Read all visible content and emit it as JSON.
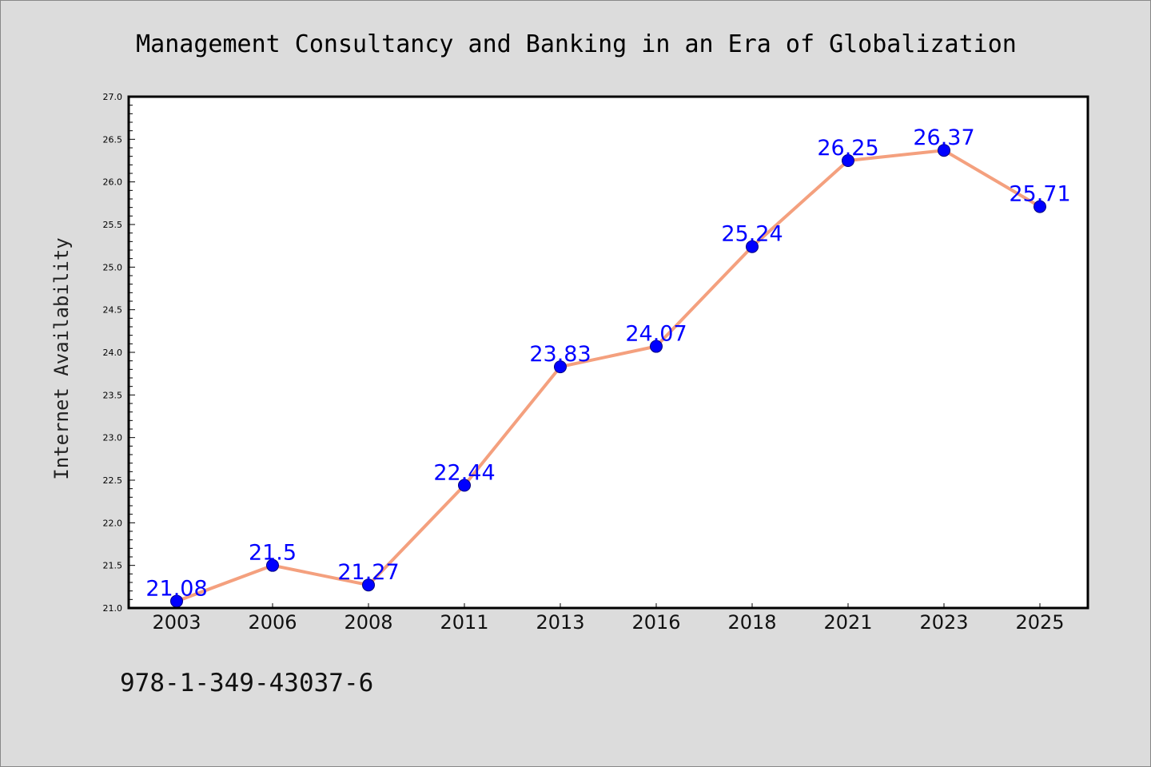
{
  "chart_data": {
    "type": "line",
    "title": "Management Consultancy and Banking in an Era of Globalization",
    "xlabel": "",
    "ylabel": "Internet Availability",
    "categories": [
      "2003",
      "2006",
      "2008",
      "2011",
      "2013",
      "2016",
      "2018",
      "2021",
      "2023",
      "2025"
    ],
    "series": [
      {
        "values": [
          21.08,
          21.5,
          21.27,
          22.44,
          23.83,
          24.07,
          25.24,
          26.25,
          26.37,
          25.71
        ]
      }
    ],
    "data_labels": [
      "21.08",
      "21.5",
      "21.27",
      "22.44",
      "23.83",
      "24.07",
      "25.24",
      "26.25",
      "26.37",
      "25.71"
    ],
    "ylim": [
      21.0,
      27.0
    ],
    "yticks": [
      "21.0",
      "21.5",
      "22.0",
      "22.5",
      "23.0",
      "23.5",
      "24.0",
      "24.5",
      "25.0",
      "25.5",
      "26.0",
      "26.5",
      "27.0"
    ],
    "grid": false,
    "legend": "none",
    "line_color": "#f4a07e",
    "marker_color": "#0000ff",
    "label_color": "#0000ff"
  },
  "footer": {
    "isbn": "978-1-349-43037-6"
  }
}
